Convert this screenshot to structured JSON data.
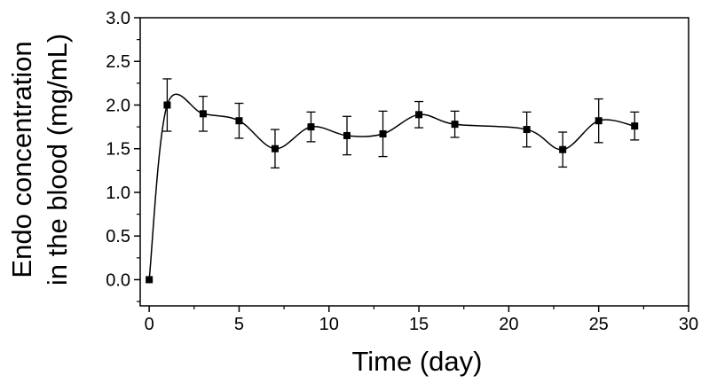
{
  "chart_data": {
    "type": "scatter",
    "title": "",
    "xlabel": "Time (day)",
    "ylabel_line1": "Endo concentration",
    "ylabel_line2": "in the blood (mg/mL)",
    "xlim": [
      -0.5,
      30
    ],
    "ylim": [
      -0.3,
      3.0
    ],
    "xticks": [
      0,
      5,
      10,
      15,
      20,
      25,
      30
    ],
    "xtick_labels": [
      "0",
      "5",
      "10",
      "15",
      "20",
      "25",
      "30"
    ],
    "yticks": [
      0.0,
      0.5,
      1.0,
      1.5,
      2.0,
      2.5,
      3.0
    ],
    "ytick_labels": [
      "0.0",
      "0.5",
      "1.0",
      "1.5",
      "2.0",
      "2.5",
      "3.0"
    ],
    "grid": false,
    "legend": "none",
    "smooth_fit_line": true,
    "series": [
      {
        "marker": "square",
        "color": "#000000",
        "x": [
          0,
          1,
          3,
          5,
          7,
          9,
          11,
          13,
          15,
          17,
          21,
          23,
          25,
          27
        ],
        "y": [
          0.0,
          2.0,
          1.9,
          1.82,
          1.5,
          1.75,
          1.65,
          1.67,
          1.89,
          1.78,
          1.72,
          1.49,
          1.82,
          1.76
        ],
        "error": [
          0.0,
          0.3,
          0.2,
          0.2,
          0.22,
          0.17,
          0.22,
          0.26,
          0.15,
          0.15,
          0.2,
          0.2,
          0.25,
          0.16
        ]
      }
    ]
  }
}
